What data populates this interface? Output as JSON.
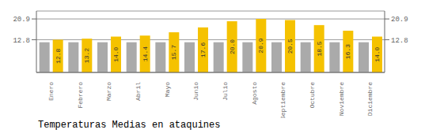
{
  "chart_data": {
    "type": "bar",
    "title": "Temperaturas Medias en ataquines",
    "categories": [
      "Enero",
      "Febrero",
      "Marzo",
      "Abril",
      "Mayo",
      "Junio",
      "Julio",
      "Agosto",
      "Septiembre",
      "Octubre",
      "Noviembre",
      "Diciembre"
    ],
    "series": [
      {
        "color": "#AAAAAA",
        "values": [
          11.8,
          11.8,
          11.8,
          11.8,
          11.8,
          11.8,
          11.8,
          11.8,
          11.8,
          11.8,
          11.8,
          11.8
        ]
      },
      {
        "color": "#F5C200",
        "values": [
          12.8,
          13.2,
          14.0,
          14.4,
          15.7,
          17.6,
          20.0,
          20.9,
          20.5,
          18.5,
          16.3,
          14.0
        ],
        "data_labels": true,
        "value_labels": [
          "12.8",
          "13.2",
          "14.0",
          "14.4",
          "15.7",
          "17.6",
          "20.0",
          "20.9",
          "20.5",
          "18.5",
          "16.3",
          "14.0"
        ]
      }
    ],
    "ylim": [
      0,
      24.0
    ],
    "yticks": [
      12.8,
      20.9
    ],
    "y2lim": [
      0,
      24.0
    ],
    "y2ticks": [
      12.8,
      20.9
    ],
    "grid": true
  }
}
